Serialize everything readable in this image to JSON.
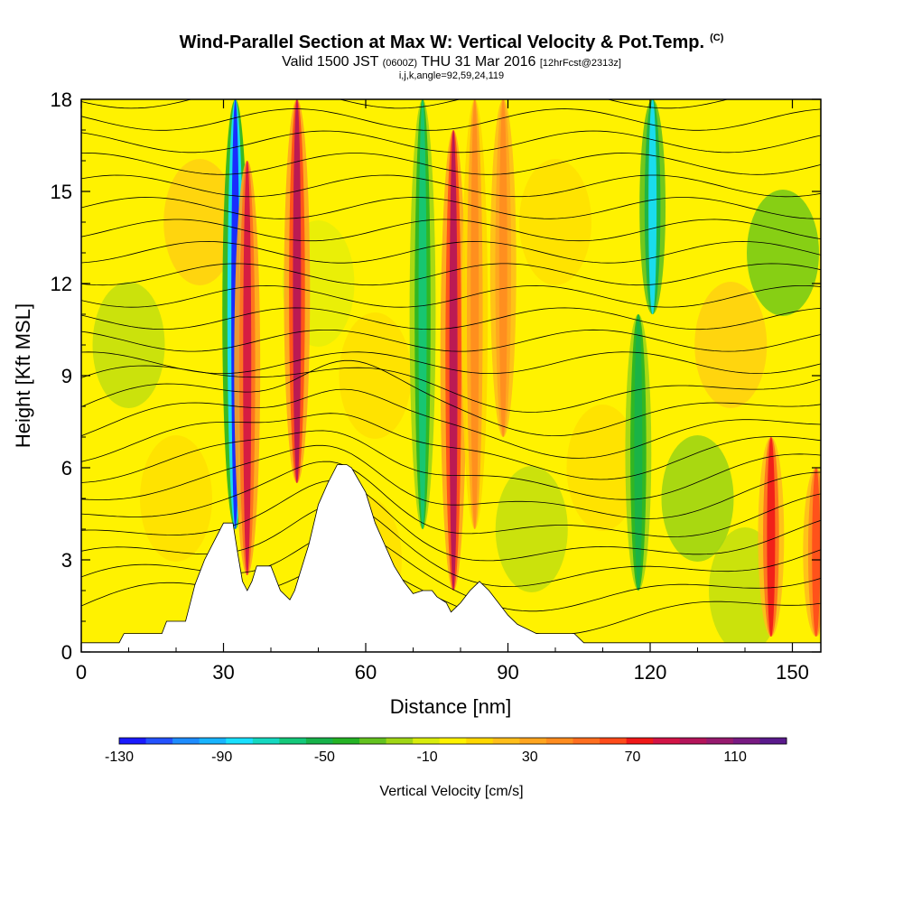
{
  "title": "Wind-Parallel Section at Max W: Vertical Velocity & Pot.Temp.",
  "title_mark": "(C)",
  "subtitle": {
    "part1": "Valid 1500 JST",
    "part2": "(0600Z)",
    "part3": "THU 31 Mar 2016",
    "part4": "[12hrFcst@2313z]"
  },
  "subsub": "i,j,k,angle=92,59,24,119",
  "chart_data": {
    "type": "heatmap",
    "xlabel": "Distance [nm]",
    "ylabel": "Height [Kft MSL]",
    "xlim": [
      0,
      156
    ],
    "ylim": [
      0,
      18
    ],
    "x_ticks": [
      0,
      30,
      60,
      90,
      120,
      150
    ],
    "y_ticks": [
      0,
      3,
      6,
      9,
      12,
      15,
      18
    ],
    "colorbar": {
      "label": "Vertical Velocity [cm/s]",
      "range": [
        -130,
        130
      ],
      "tick_labels": [
        -130,
        -90,
        -50,
        -10,
        30,
        70,
        110
      ],
      "colors": [
        "#1a1aff",
        "#2452ff",
        "#1e8cff",
        "#18b4ff",
        "#19e0ff",
        "#15d8c0",
        "#14c87a",
        "#17b24a",
        "#25b325",
        "#63c21f",
        "#a0d615",
        "#d8ec0c",
        "#fff200",
        "#ffd700",
        "#ffbe1a",
        "#ffa51f",
        "#ff8c1f",
        "#ff6e1f",
        "#ff4b1a",
        "#f01818",
        "#d21446",
        "#b4145a",
        "#961a6e",
        "#781a82",
        "#5a1a8c"
      ]
    },
    "terrain_profile": [
      [
        0,
        0.3
      ],
      [
        8,
        0.3
      ],
      [
        9,
        0.6
      ],
      [
        17,
        0.6
      ],
      [
        18,
        1.0
      ],
      [
        22,
        1.0
      ],
      [
        24,
        2.2
      ],
      [
        26,
        3.0
      ],
      [
        28,
        3.6
      ],
      [
        30,
        4.2
      ],
      [
        32,
        4.2
      ],
      [
        33,
        3.2
      ],
      [
        34,
        2.3
      ],
      [
        35,
        2.0
      ],
      [
        36,
        2.3
      ],
      [
        37,
        2.8
      ],
      [
        40,
        2.8
      ],
      [
        42,
        2.0
      ],
      [
        44,
        1.7
      ],
      [
        45,
        2.0
      ],
      [
        46,
        2.5
      ],
      [
        48,
        3.5
      ],
      [
        50,
        4.8
      ],
      [
        52,
        5.5
      ],
      [
        54,
        6.1
      ],
      [
        56,
        6.1
      ],
      [
        57,
        6.0
      ],
      [
        60,
        5.2
      ],
      [
        62,
        4.2
      ],
      [
        64,
        3.5
      ],
      [
        66,
        2.8
      ],
      [
        68,
        2.3
      ],
      [
        70,
        1.9
      ],
      [
        72,
        2.0
      ],
      [
        74,
        2.0
      ],
      [
        75,
        1.8
      ],
      [
        77,
        1.6
      ],
      [
        78,
        1.3
      ],
      [
        80,
        1.6
      ],
      [
        82,
        2.0
      ],
      [
        84,
        2.3
      ],
      [
        86,
        2.0
      ],
      [
        88,
        1.6
      ],
      [
        90,
        1.2
      ],
      [
        92,
        0.9
      ],
      [
        96,
        0.6
      ],
      [
        104,
        0.6
      ],
      [
        106,
        0.3
      ],
      [
        156,
        0.3
      ]
    ],
    "updraft_bands": [
      {
        "x": 32.5,
        "top": 18,
        "bottom": 4.0,
        "w": -120
      },
      {
        "x": 35.0,
        "top": 16,
        "bottom": 2.5,
        "w": 80
      },
      {
        "x": 45.5,
        "top": 18,
        "bottom": 5.5,
        "w": 95
      },
      {
        "x": 72.0,
        "top": 18,
        "bottom": 4.0,
        "w": -60
      },
      {
        "x": 78.5,
        "top": 17,
        "bottom": 2.0,
        "w": 90
      },
      {
        "x": 83.0,
        "top": 18,
        "bottom": 4.0,
        "w": 40
      },
      {
        "x": 89.0,
        "top": 18,
        "bottom": 7.0,
        "w": 45
      },
      {
        "x": 117.5,
        "top": 11,
        "bottom": 2.0,
        "w": -55
      },
      {
        "x": 120.5,
        "top": 18,
        "bottom": 11.0,
        "w": -80
      },
      {
        "x": 145.5,
        "top": 7,
        "bottom": 0.5,
        "w": 70
      },
      {
        "x": 155.0,
        "top": 6,
        "bottom": 0.5,
        "w": 60
      }
    ],
    "theta_isentropes": 24
  }
}
